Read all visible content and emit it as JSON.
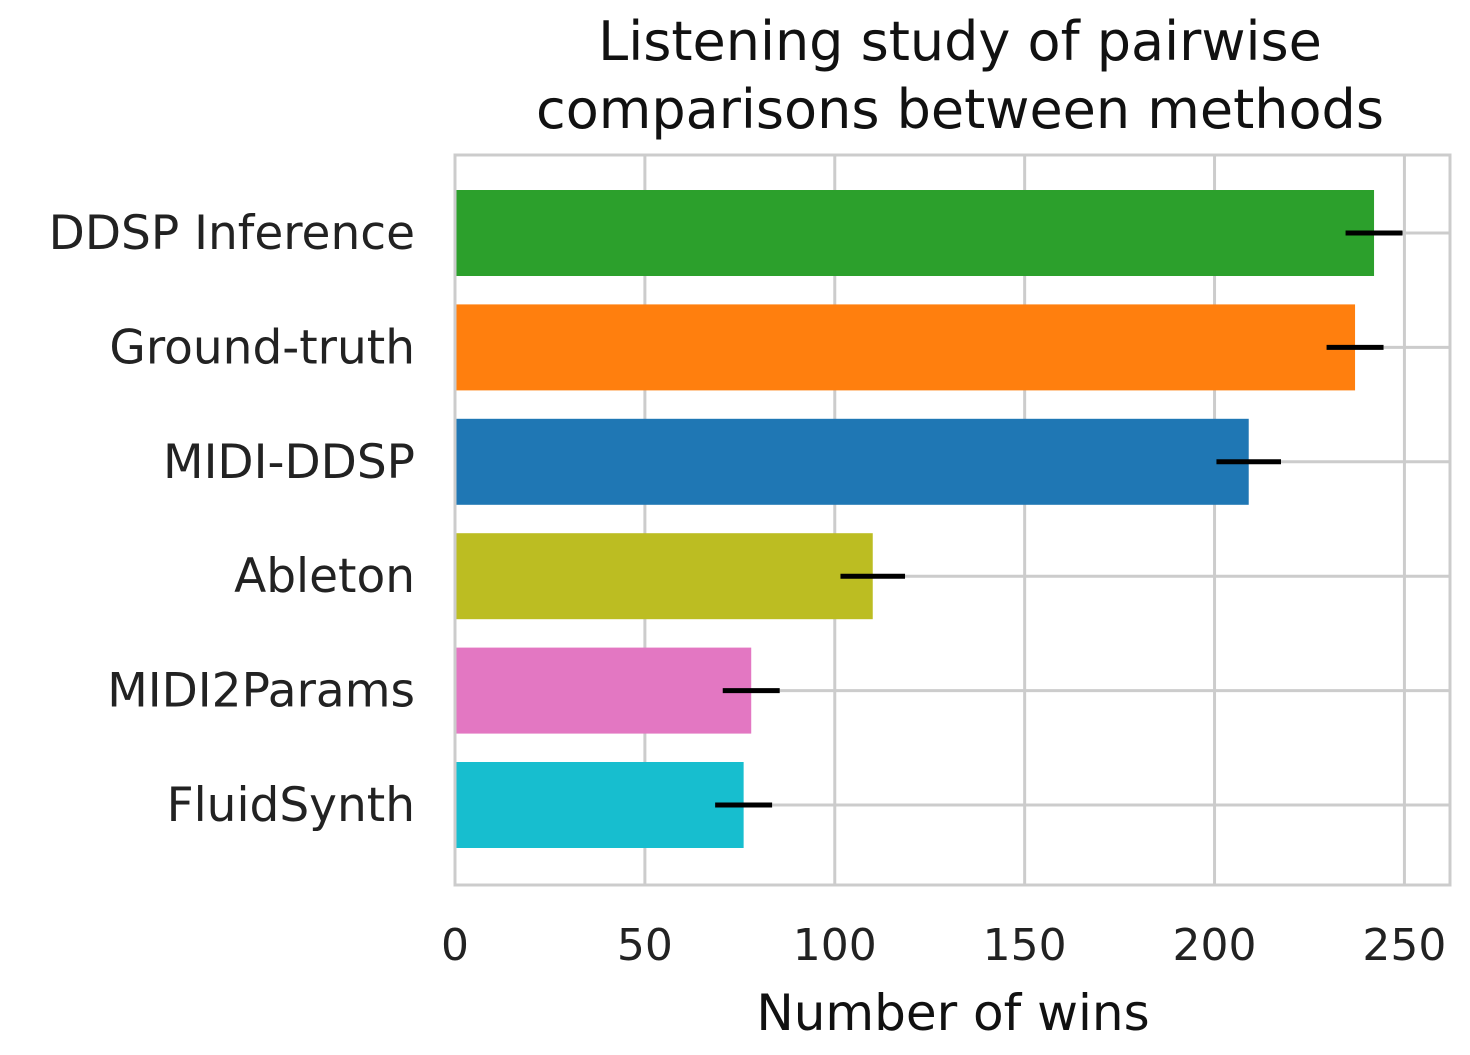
{
  "chart_data": {
    "type": "bar",
    "orientation": "horizontal",
    "title_lines": [
      "Listening study of pairwise",
      "comparisons between methods"
    ],
    "xlabel": "Number of wins",
    "ylabel": "",
    "xlim": [
      0,
      262
    ],
    "x_ticks": [
      0,
      50,
      100,
      150,
      200,
      250
    ],
    "x_tick_labels": [
      "0",
      "50",
      "100",
      "150",
      "200",
      "250"
    ],
    "grid": true,
    "categories": [
      "DDSP Inference",
      "Ground-truth",
      "MIDI-DDSP",
      "Ableton",
      "MIDI2Params",
      "FluidSynth"
    ],
    "values": [
      242,
      237,
      209,
      110,
      78,
      76
    ],
    "error": [
      7.5,
      7.5,
      8.5,
      8.5,
      7.5,
      7.5
    ],
    "colors": [
      "#2ca02c",
      "#ff7f0e",
      "#1f77b4",
      "#bcbd22",
      "#e377c2",
      "#17becf"
    ],
    "error_bar_color": "#000000",
    "grid_color": "#cccccc"
  }
}
